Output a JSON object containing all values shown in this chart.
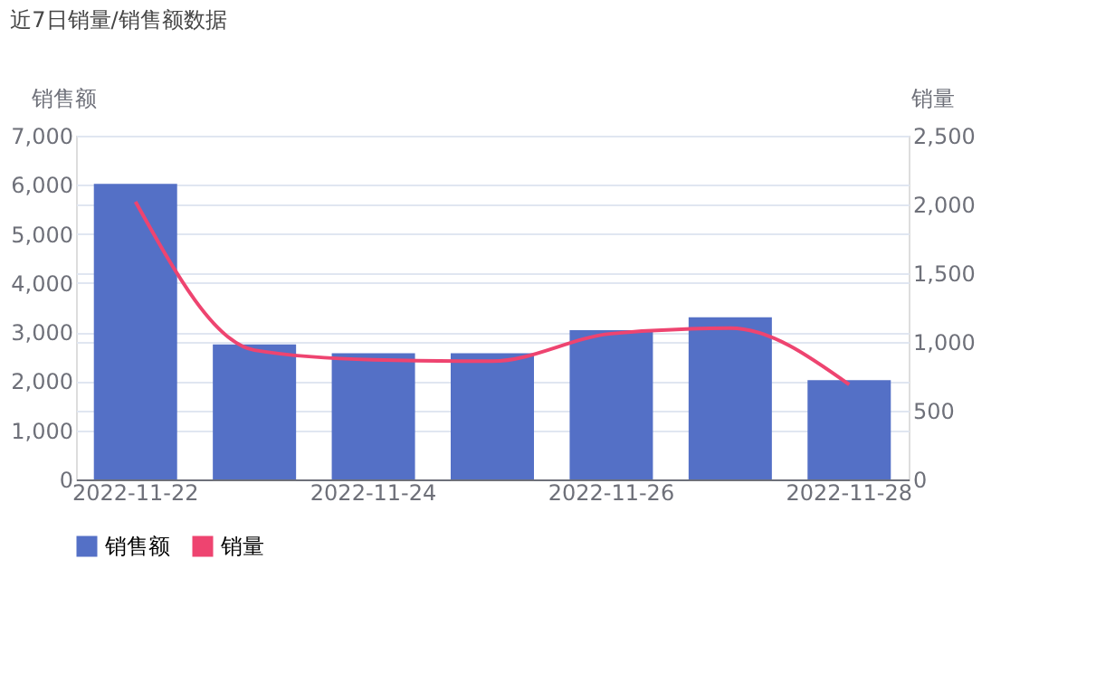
{
  "chart_data": {
    "type": "bar",
    "title": "近7日销量/销售额数据",
    "categories": [
      "2022-11-22",
      null,
      "2022-11-24",
      null,
      "2022-11-26",
      null,
      "2022-11-28"
    ],
    "series": [
      {
        "name": "销售额",
        "color": "#5470c6",
        "values": [
          6020,
          2750,
          2570,
          2570,
          3040,
          3300,
          2020
        ]
      },
      {
        "name": "销量",
        "type": "line",
        "axis": "y2",
        "color": "#ee4470",
        "values": [
          2020,
          940,
          870,
          860,
          1060,
          1100,
          690
        ]
      }
    ],
    "ylabel": "销售额",
    "y2label": "销量",
    "ylim": [
      0,
      7000
    ],
    "yticks": [
      0,
      {
        "value": 1000,
        "label": "1,000"
      },
      {
        "value": 2000,
        "label": "2,000"
      },
      {
        "value": 3000,
        "label": "3,000"
      },
      {
        "value": 4000,
        "label": "4,000"
      },
      {
        "value": 5000,
        "label": "5,000"
      },
      {
        "value": 6000,
        "label": "6,000"
      },
      {
        "value": 7000,
        "label": "7,000"
      }
    ],
    "y2lim": [
      0,
      2500
    ],
    "y2ticks": [
      0,
      500,
      {
        "value": 1000,
        "label": "1,000"
      },
      {
        "value": 1500,
        "label": "1,500"
      },
      {
        "value": 2000,
        "label": "2,000"
      },
      {
        "value": 2500,
        "label": "2,500"
      }
    ],
    "grid": "y",
    "legend": "bottom",
    "marker": "none",
    "line_style": "solid"
  }
}
